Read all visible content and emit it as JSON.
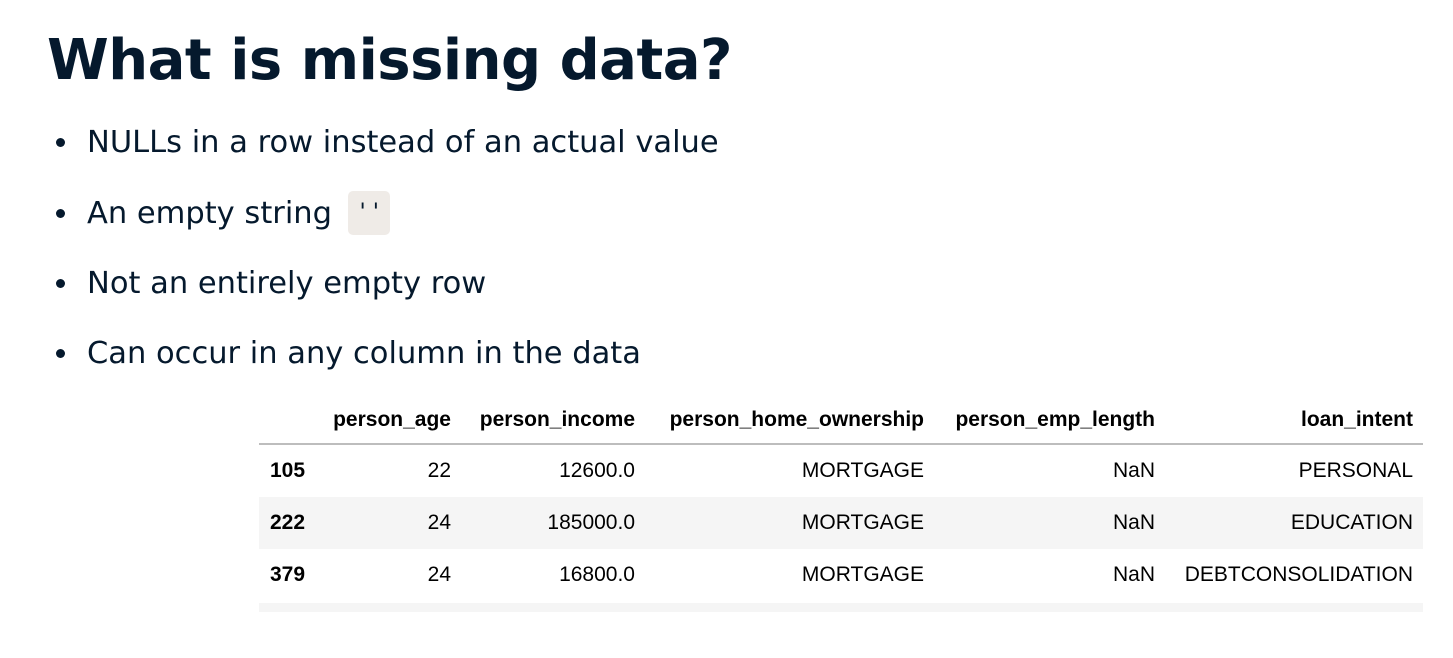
{
  "slide": {
    "title": "What is missing data?",
    "bullets": [
      "NULLs in a row instead of an actual value",
      "An empty string",
      "Not an entirely empty row",
      "Can occur in any column in the data"
    ],
    "empty_string_code": "''"
  },
  "table": {
    "index_header": "",
    "headers": [
      "person_age",
      "person_income",
      "person_home_ownership",
      "person_emp_length",
      "loan_intent"
    ],
    "rows": [
      {
        "index": "105",
        "cells": [
          "22",
          "12600.0",
          "MORTGAGE",
          "NaN",
          "PERSONAL"
        ]
      },
      {
        "index": "222",
        "cells": [
          "24",
          "185000.0",
          "MORTGAGE",
          "NaN",
          "EDUCATION"
        ]
      },
      {
        "index": "379",
        "cells": [
          "24",
          "16800.0",
          "MORTGAGE",
          "NaN",
          "DEBTCONSOLIDATION"
        ]
      }
    ]
  }
}
